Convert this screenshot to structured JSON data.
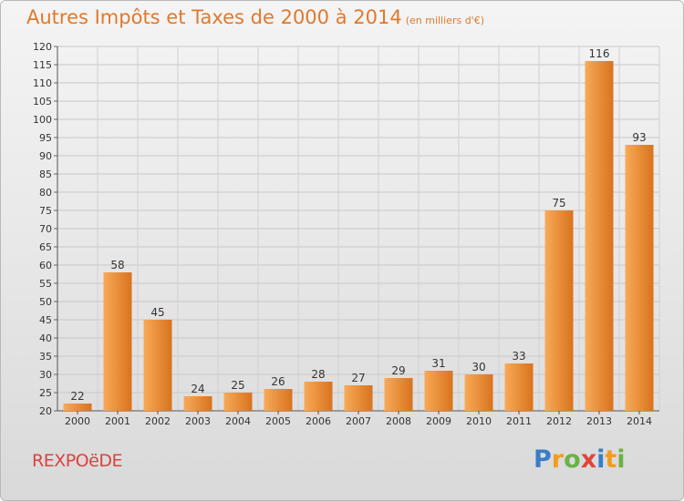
{
  "title": "Autres Impôts et Taxes de 2000 à 2014",
  "subtitle": "(en milliers d'€)",
  "commune": "REXPOëDE",
  "brand": {
    "letters": [
      "P",
      "r",
      "o",
      "x",
      "i",
      "t",
      "i"
    ],
    "colors": [
      "#3a7dc8",
      "#f29c1f",
      "#6ab344",
      "#e2453c",
      "#3a7dc8",
      "#f29c1f",
      "#6ab344"
    ]
  },
  "colors": {
    "bar_light": "#f8aa58",
    "bar_dark": "#d8731e",
    "title": "#e0792c",
    "commune": "#d9433f"
  },
  "chart_data": {
    "type": "bar",
    "categories": [
      "2000",
      "2001",
      "2002",
      "2003",
      "2004",
      "2005",
      "2006",
      "2007",
      "2008",
      "2009",
      "2010",
      "2011",
      "2012",
      "2013",
      "2014"
    ],
    "values": [
      22,
      58,
      45,
      24,
      25,
      26,
      28,
      27,
      29,
      31,
      30,
      33,
      75,
      116,
      93
    ],
    "title": "Autres Impôts et Taxes de 2000 à 2014",
    "xlabel": "",
    "ylabel": "",
    "ylim": [
      20,
      120
    ],
    "yticks": [
      20,
      25,
      30,
      35,
      40,
      45,
      50,
      55,
      60,
      65,
      70,
      75,
      80,
      85,
      90,
      95,
      100,
      105,
      110,
      115,
      120
    ],
    "grid": true,
    "legend": "none"
  }
}
